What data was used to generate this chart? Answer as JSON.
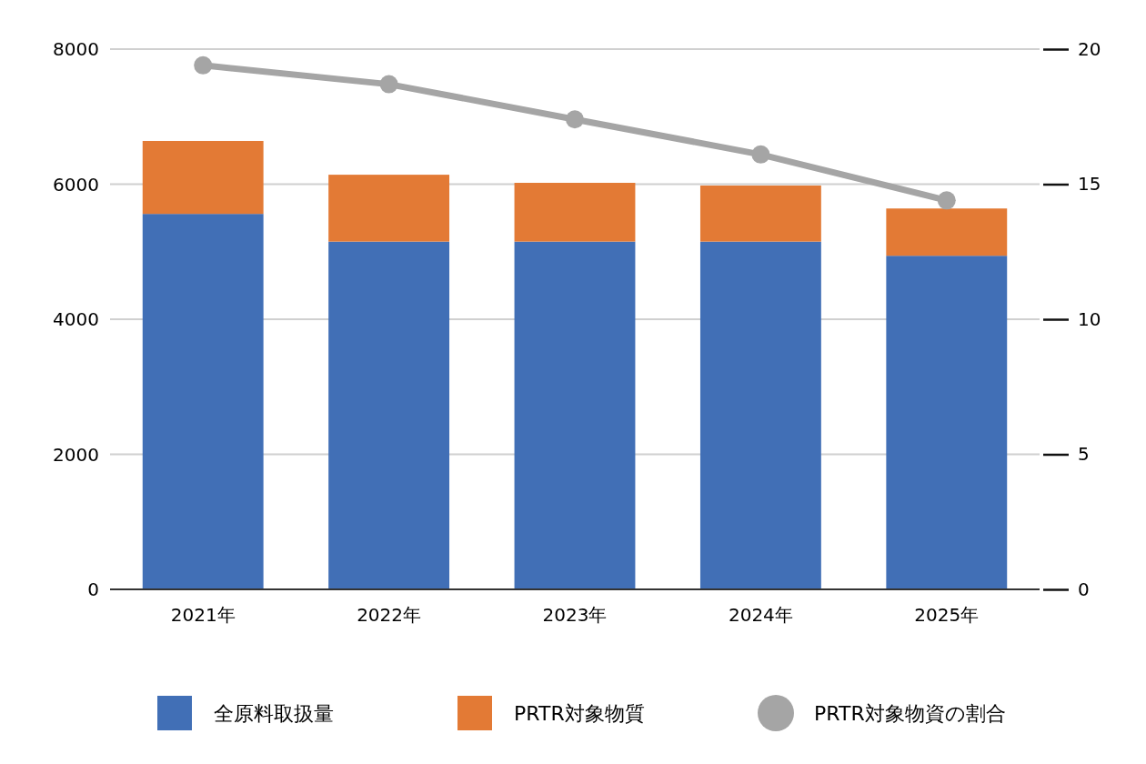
{
  "chart_data": {
    "type": "bar",
    "stacked": true,
    "categories": [
      "2021年",
      "2022年",
      "2023年",
      "2024年",
      "2025年"
    ],
    "series": [
      {
        "name": "全原料取扱量",
        "color": "#416fb6",
        "values": [
          5560,
          5150,
          5150,
          5150,
          4940
        ]
      },
      {
        "name": "PRTR対象物質",
        "color": "#e37a35",
        "values": [
          1080,
          990,
          870,
          830,
          700
        ]
      },
      {
        "name": "PRTR対象物資の割合",
        "type": "line",
        "axis": "y2",
        "color": "#a5a5a5",
        "marker": "circle",
        "values": [
          19.4,
          18.7,
          17.4,
          16.1,
          14.4
        ]
      }
    ],
    "ylim": [
      0,
      8000
    ],
    "yticks": [
      0,
      2000,
      4000,
      6000,
      8000
    ],
    "y2lim": [
      0,
      20
    ],
    "y2ticks": [
      0,
      5,
      10,
      15,
      20
    ],
    "grid": "y",
    "legend": "bottom"
  }
}
